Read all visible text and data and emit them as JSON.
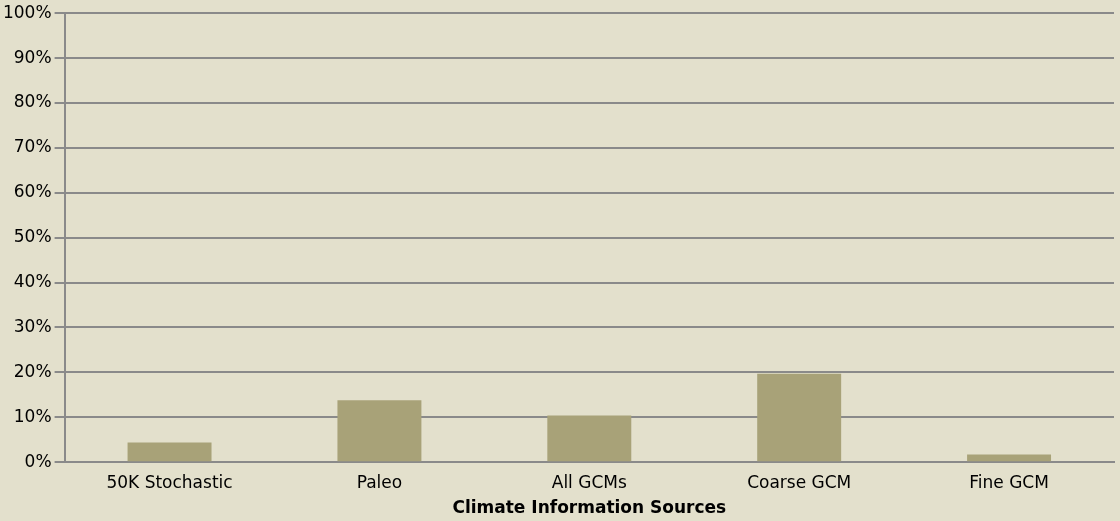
{
  "chart_data": {
    "type": "bar",
    "xlabel": "Climate Information Sources",
    "categories": [
      "50K Stochastic",
      "Paleo",
      "All GCMs",
      "Coarse GCM",
      "Fine GCM"
    ],
    "values": [
      4.4,
      13.8,
      10.4,
      19.7,
      1.7
    ],
    "color": "#a8a278",
    "ylim": [
      0,
      100
    ],
    "yticks": [
      {
        "value": 0,
        "label": "0%"
      },
      {
        "value": 10,
        "label": "10%"
      },
      {
        "value": 20,
        "label": "20%"
      },
      {
        "value": 30,
        "label": "30%"
      },
      {
        "value": 40,
        "label": "40%"
      },
      {
        "value": 50,
        "label": "50%"
      },
      {
        "value": 60,
        "label": "60%"
      },
      {
        "value": 70,
        "label": "70%"
      },
      {
        "value": 80,
        "label": "80%"
      },
      {
        "value": 90,
        "label": "90%"
      },
      {
        "value": 100,
        "label": "100%"
      }
    ],
    "grid": "y",
    "legend": false
  }
}
